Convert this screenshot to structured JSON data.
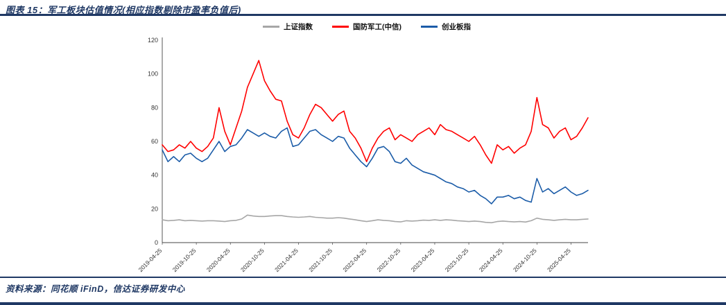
{
  "header": {
    "title": "图表 15：军工板块估值情况(相应指数剔除市盈率负值后)"
  },
  "footer": {
    "source": "资料来源：同花顺 iFinD，信达证券研发中心"
  },
  "colors": {
    "accent_navy": "#1F3864",
    "red_series": "#FF0000",
    "blue_series": "#1B5CA8",
    "gray_series": "#A6A6A6"
  },
  "chart_data": {
    "type": "line",
    "title": "军工板块估值情况(相应指数剔除市盈率负值后)",
    "xlabel": "",
    "ylabel": "",
    "ylim": [
      0,
      120
    ],
    "y_ticks": [
      0,
      20,
      40,
      60,
      80,
      100,
      120
    ],
    "grid": false,
    "legend_position": "top",
    "x_note": "monthly points from 2019-04 to 2025-07, PE ratio (TTM)",
    "x_tick_labels": [
      "2019-04-25",
      "2019-10-25",
      "2020-04-25",
      "2020-10-25",
      "2021-04-25",
      "2021-10-25",
      "2022-04-25",
      "2022-10-25",
      "2023-04-25",
      "2023-10-25",
      "2024-04-25",
      "2024-10-25",
      "2025-04-25"
    ],
    "x_tick_index": [
      0,
      6,
      12,
      18,
      24,
      30,
      36,
      42,
      48,
      54,
      60,
      66,
      72
    ],
    "series": [
      {
        "name": "上证指数",
        "color": "#A6A6A6",
        "values": [
          13.5,
          13,
          13.2,
          13.5,
          13,
          13.2,
          13,
          12.8,
          13,
          13,
          12.8,
          12.5,
          13,
          13.2,
          14,
          16.3,
          15.8,
          15.5,
          15.5,
          15.8,
          16,
          16,
          15.5,
          15.2,
          15,
          15.2,
          15.5,
          15,
          14.8,
          14.5,
          14.5,
          14.8,
          14.5,
          14,
          13.5,
          13,
          12.5,
          13,
          13.5,
          13.2,
          13,
          12.5,
          12.3,
          13,
          12.8,
          13,
          13.3,
          13.2,
          13.5,
          13.2,
          13.5,
          13.3,
          13,
          12.8,
          12.5,
          12.8,
          12.5,
          12,
          11.8,
          12.5,
          12.8,
          12.5,
          12.3,
          12.5,
          12.2,
          13,
          14.5,
          13.8,
          13.5,
          13.2,
          13.5,
          13.8,
          13.5,
          13.5,
          13.8,
          14
        ]
      },
      {
        "name": "国防军工(中信)",
        "color": "#FF0000",
        "values": [
          58,
          54,
          55,
          58,
          56,
          60,
          56,
          54,
          57,
          62,
          80,
          66,
          58,
          68,
          78,
          92,
          100,
          108,
          96,
          90,
          85,
          84,
          72,
          64,
          62,
          68,
          76,
          82,
          80,
          76,
          72,
          76,
          78,
          66,
          62,
          56,
          48,
          56,
          62,
          66,
          68,
          61,
          64,
          62,
          60,
          64,
          66,
          68,
          64,
          70,
          67,
          66,
          64,
          62,
          60,
          63,
          58,
          52,
          47,
          58,
          55,
          57,
          53,
          56,
          58,
          66,
          86,
          70,
          68,
          62,
          66,
          68,
          61,
          63,
          68,
          74
        ]
      },
      {
        "name": "创业板指",
        "color": "#1B5CA8",
        "values": [
          55,
          48,
          51,
          48,
          52,
          53,
          50,
          48,
          50,
          55,
          60,
          54,
          57,
          58,
          62,
          67,
          65,
          63,
          65,
          63,
          62,
          66,
          68,
          57,
          58,
          62,
          66,
          67,
          64,
          62,
          60,
          63,
          62,
          56,
          52,
          48,
          45,
          50,
          56,
          57,
          54,
          48,
          47,
          50,
          46,
          44,
          42,
          41,
          40,
          38,
          36,
          35,
          33,
          32,
          30,
          31,
          28,
          26,
          23,
          27,
          27,
          28,
          26,
          27,
          25,
          24,
          38,
          30,
          32,
          29,
          31,
          33,
          30,
          28,
          29,
          31
        ]
      }
    ]
  }
}
